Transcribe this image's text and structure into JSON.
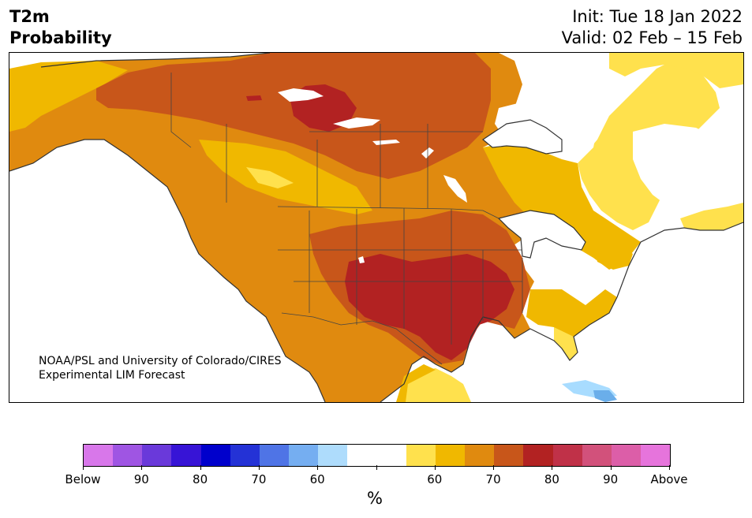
{
  "header": {
    "title_lines": [
      "T2m",
      "Probability"
    ],
    "init": "Init: Tue 18 Jan 2022",
    "valid": "Valid: 02 Feb – 15 Feb"
  },
  "credit": {
    "line1": "NOAA/PSL and University of Colorado/CIRES",
    "line2": "Experimental LIM Forecast"
  },
  "map": {
    "region": "North America",
    "background_color": "#ffffff",
    "coast_color": "#333333",
    "level_colors": {
      "above_60": "#ffe14d",
      "above_70": "#f0b800",
      "above_80": "#e08a0f",
      "above_90": "#c8561a",
      "above_max": "#b22222",
      "below_60": "#a8dcff",
      "below_70": "#6aaeea"
    }
  },
  "colorbar": {
    "colors": [
      "#d877ea",
      "#9f55e3",
      "#6a39da",
      "#3714d6",
      "#0000cc",
      "#2432d6",
      "#4f74e6",
      "#75aef1",
      "#aedcfc",
      "#ffffff",
      "#ffffff",
      "#ffe14d",
      "#f0b800",
      "#e08a0f",
      "#c8561a",
      "#b22222",
      "#c03148",
      "#d2517b",
      "#dc5ea8",
      "#e674dc"
    ],
    "tick_labels": [
      "Below",
      "90",
      "80",
      "70",
      "60",
      "",
      "60",
      "70",
      "80",
      "90",
      "Above"
    ],
    "unit": "%"
  }
}
